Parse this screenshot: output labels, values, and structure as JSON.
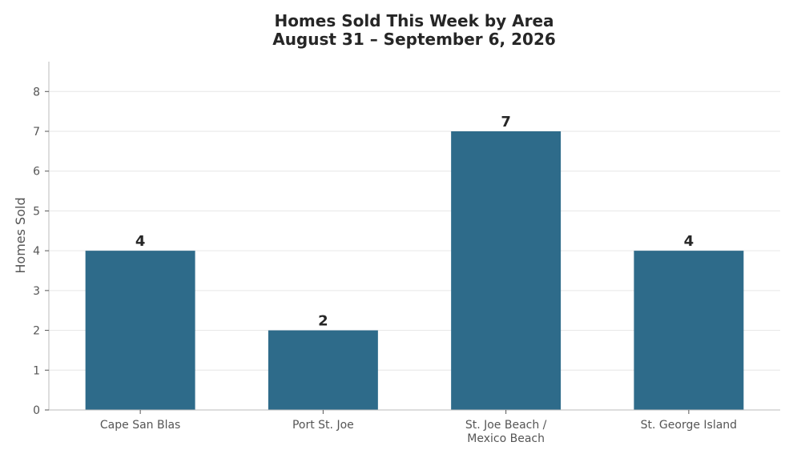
{
  "chart_data": {
    "type": "bar",
    "title_lines": [
      "Homes Sold This Week by Area",
      "August 31 – September 6, 2026"
    ],
    "xlabel": "",
    "ylabel": "Homes Sold",
    "categories": [
      [
        "Cape San Blas"
      ],
      [
        "Port St. Joe"
      ],
      [
        "St. Joe Beach /",
        "Mexico Beach"
      ],
      [
        "St. George Island"
      ]
    ],
    "values": [
      4,
      2,
      7,
      4
    ],
    "data_labels": [
      "4",
      "2",
      "7",
      "4"
    ],
    "ylim": [
      0,
      8.75
    ],
    "yticks": [
      0,
      1,
      2,
      3,
      4,
      5,
      6,
      7,
      8
    ],
    "ytick_labels": [
      "0",
      "1",
      "2",
      "3",
      "4",
      "5",
      "6",
      "7",
      "8"
    ],
    "grid": "horizontal",
    "legend": "none",
    "colors": {
      "bar": "#2e6b8a",
      "grid": "#e6e6e6",
      "axis": "#bbbbbb"
    }
  }
}
